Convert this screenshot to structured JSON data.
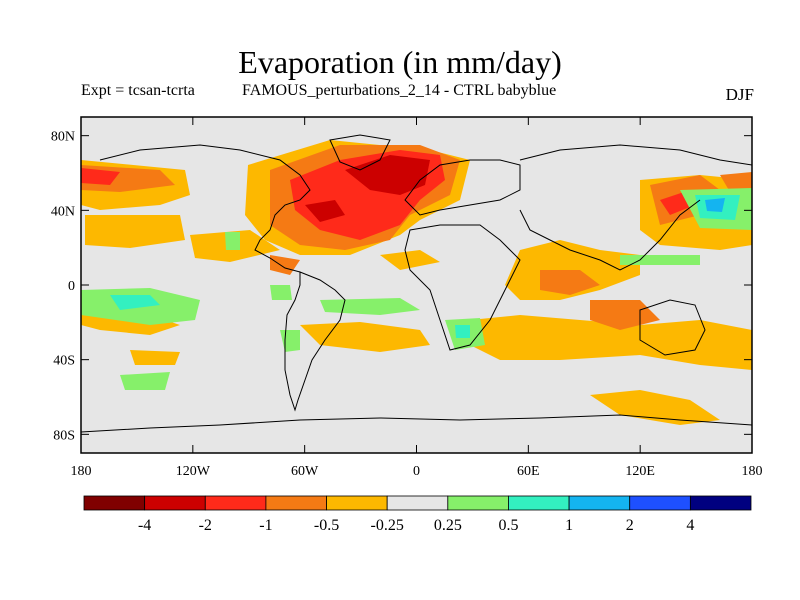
{
  "title": "Evaporation (in mm/day)",
  "subtitle_left": "Expt = tcsan-tcrta",
  "subtitle_center": "FAMOUS_perturbations_2_14 - CTRL babyblue",
  "season": "DJF",
  "map": {
    "lon_range": [
      -180,
      180
    ],
    "lat_range": [
      -90,
      90
    ],
    "x_ticks": [
      {
        "value": -180,
        "label": "180"
      },
      {
        "value": -120,
        "label": "120W"
      },
      {
        "value": -60,
        "label": "60W"
      },
      {
        "value": 0,
        "label": "0"
      },
      {
        "value": 60,
        "label": "60E"
      },
      {
        "value": 120,
        "label": "120E"
      },
      {
        "value": 180,
        "label": "180"
      }
    ],
    "y_ticks": [
      {
        "value": 80,
        "label": "80N"
      },
      {
        "value": 40,
        "label": "40N"
      },
      {
        "value": 0,
        "label": "0"
      },
      {
        "value": -40,
        "label": "40S"
      },
      {
        "value": -80,
        "label": "80S"
      }
    ],
    "background_color": "#e6e6e6"
  },
  "colorbar": {
    "colors": [
      "#800000",
      "#cc0000",
      "#ff2a1a",
      "#f57a14",
      "#fdb800",
      "#e6e6e6",
      "#86f06a",
      "#33f0c0",
      "#14b4f0",
      "#1e50ff",
      "#000080"
    ],
    "labels": [
      "-4",
      "-2",
      "-1",
      "-0.5",
      "-0.25",
      "0.25",
      "0.5",
      "1",
      "2",
      "4"
    ]
  }
}
